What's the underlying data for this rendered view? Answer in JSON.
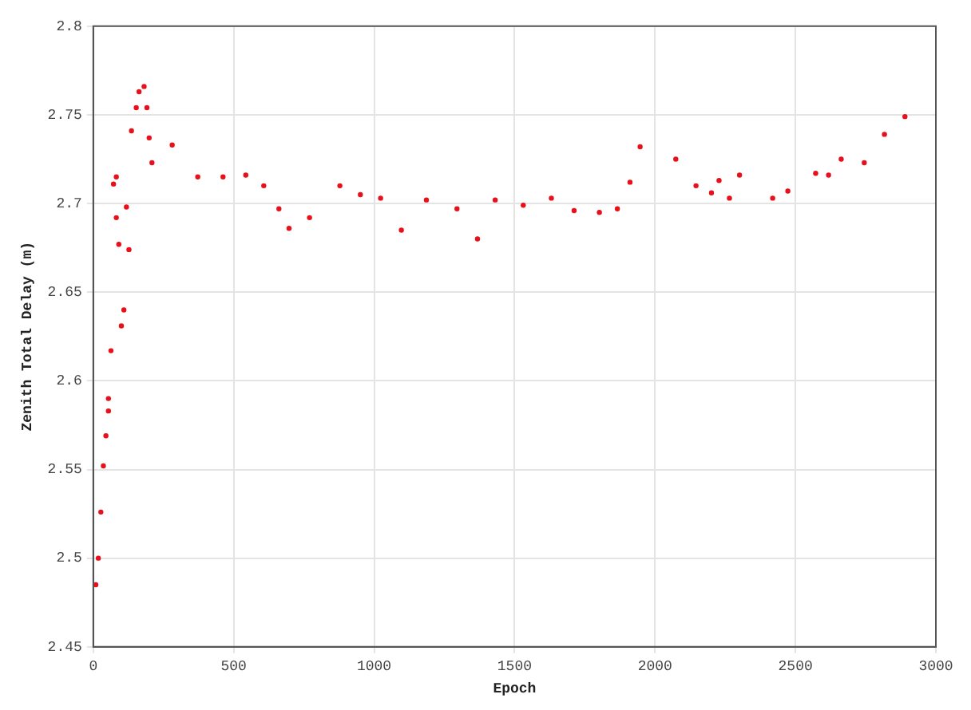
{
  "chart_data": {
    "type": "scatter",
    "xlabel": "Epoch",
    "ylabel": "Zenith Total Delay (m)",
    "xlim": [
      0,
      3000
    ],
    "xticks": [
      0,
      500,
      1000,
      1500,
      2000,
      2500,
      3000
    ],
    "ylim": [
      2.45,
      2.8
    ],
    "yticks": [
      2.45,
      2.5,
      2.55,
      2.6,
      2.65,
      2.7,
      2.75,
      2.8
    ],
    "grid": true,
    "marker": "circle",
    "series": [
      {
        "color": "#e8101a",
        "x": [
          9,
          18,
          27,
          36,
          45,
          54,
          54,
          63,
          72,
          82,
          82,
          91,
          100,
          109,
          118,
          127,
          136,
          153,
          163,
          181,
          191,
          199,
          209,
          281,
          372,
          462,
          543,
          607,
          661,
          697,
          770,
          878,
          951,
          1023,
          1097,
          1186,
          1295,
          1368,
          1431,
          1531,
          1631,
          1712,
          1802,
          1866,
          1911,
          1947,
          2074,
          2146,
          2201,
          2228,
          2265,
          2301,
          2419,
          2473,
          2572,
          2618,
          2663,
          2745,
          2817,
          2890
        ],
        "values": [
          2.485,
          2.5,
          2.526,
          2.552,
          2.569,
          2.583,
          2.59,
          2.617,
          2.711,
          2.715,
          2.692,
          2.677,
          2.631,
          2.64,
          2.698,
          2.674,
          2.741,
          2.754,
          2.763,
          2.766,
          2.754,
          2.737,
          2.723,
          2.733,
          2.715,
          2.715,
          2.716,
          2.71,
          2.697,
          2.686,
          2.692,
          2.71,
          2.705,
          2.703,
          2.685,
          2.702,
          2.697,
          2.68,
          2.702,
          2.699,
          2.703,
          2.696,
          2.695,
          2.697,
          2.712,
          2.732,
          2.725,
          2.71,
          2.706,
          2.713,
          2.703,
          2.716,
          2.703,
          2.707,
          2.717,
          2.716,
          2.725,
          2.723,
          2.739,
          2.749
        ]
      }
    ]
  }
}
